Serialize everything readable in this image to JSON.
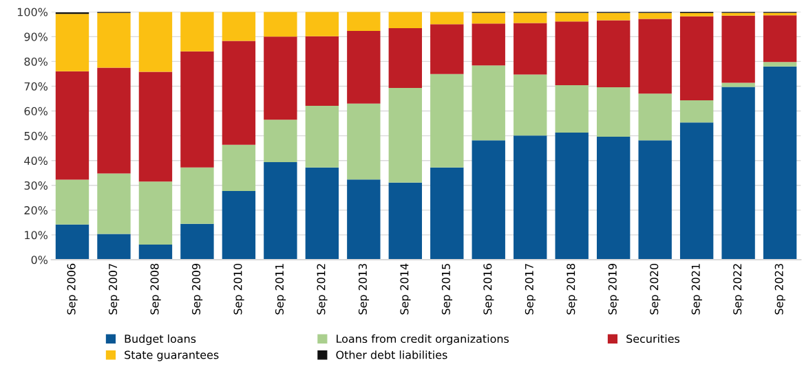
{
  "chart_data": {
    "type": "bar",
    "stacked": true,
    "categories": [
      "Sep 2006",
      "Sep 2007",
      "Sep 2008",
      "Sep 2009",
      "Sep 2010",
      "Sep 2011",
      "Sep 2012",
      "Sep 2013",
      "Sep 2014",
      "Sep 2015",
      "Sep 2016",
      "Sep 2017",
      "Sep 2018",
      "Sep 2019",
      "Sep 2020",
      "Sep 2021",
      "Sep 2022",
      "Sep 2023"
    ],
    "series": [
      {
        "name": "Budget loans",
        "color": "#0a5794",
        "values": [
          14.2,
          10.4,
          6.1,
          14.5,
          27.7,
          39.4,
          37.2,
          32.4,
          31.1,
          37.2,
          48.2,
          50.1,
          51.3,
          49.6,
          48.2,
          55.4,
          69.7,
          78.0
        ]
      },
      {
        "name": "Loans from credit organizations",
        "color": "#aacf8e",
        "values": [
          18.1,
          24.4,
          25.4,
          22.7,
          18.7,
          17.1,
          24.9,
          30.6,
          38.2,
          37.7,
          30.2,
          24.6,
          19.1,
          20.0,
          18.8,
          8.9,
          1.7,
          1.8
        ]
      },
      {
        "name": "Securities",
        "color": "#be1e26",
        "values": [
          43.7,
          42.7,
          44.3,
          46.9,
          41.9,
          33.5,
          28.1,
          29.3,
          24.1,
          20.1,
          16.9,
          20.8,
          25.7,
          27.0,
          30.2,
          33.9,
          27.1,
          18.8
        ]
      },
      {
        "name": "State guarantees",
        "color": "#fbc012",
        "values": [
          23.2,
          22.1,
          24.2,
          15.9,
          11.7,
          10.0,
          9.8,
          7.7,
          6.6,
          5.0,
          4.3,
          4.1,
          3.5,
          3.0,
          2.4,
          1.3,
          1.1,
          1.0
        ]
      },
      {
        "name": "Other debt liabilities",
        "color": "#111111",
        "values": [
          0.6,
          0.4,
          0,
          0,
          0,
          0,
          0,
          0,
          0,
          0,
          0.4,
          0.4,
          0.4,
          0.4,
          0.4,
          0.5,
          0.4,
          0.4
        ]
      }
    ],
    "ylim": [
      0,
      100
    ],
    "yticks": [
      {
        "value": 0,
        "label": "0%"
      },
      {
        "value": 10,
        "label": "10%"
      },
      {
        "value": 20,
        "label": "20%"
      },
      {
        "value": 30,
        "label": "30%"
      },
      {
        "value": 40,
        "label": "40%"
      },
      {
        "value": 50,
        "label": "50%"
      },
      {
        "value": 60,
        "label": "60%"
      },
      {
        "value": 70,
        "label": "70%"
      },
      {
        "value": 80,
        "label": "80%"
      },
      {
        "value": 90,
        "label": "90%"
      },
      {
        "value": 100,
        "label": "100%"
      }
    ],
    "grid": "y",
    "legend": "bottom"
  }
}
